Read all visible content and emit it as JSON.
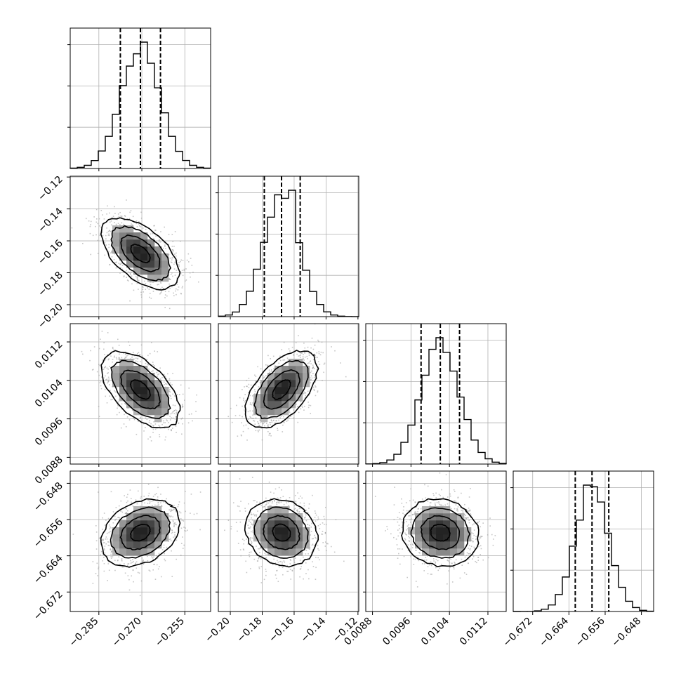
{
  "chart_data": {
    "type": "corner",
    "grid": true,
    "parameters": [
      {
        "index": 0,
        "range": [
          -0.295,
          -0.246
        ],
        "ticks": [
          {
            "value": -0.285,
            "label": "−0.285"
          },
          {
            "value": -0.27,
            "label": "−0.270"
          },
          {
            "value": -0.255,
            "label": "−0.255"
          }
        ],
        "quantiles": [
          -0.2775,
          -0.2705,
          -0.2635
        ],
        "median": -0.2705,
        "sigma": 0.0068
      },
      {
        "index": 1,
        "range": [
          -0.2075,
          -0.1195
        ],
        "ticks": [
          {
            "value": -0.2,
            "label": "−0.20"
          },
          {
            "value": -0.18,
            "label": "−0.18"
          },
          {
            "value": -0.16,
            "label": "−0.16"
          },
          {
            "value": -0.14,
            "label": "−0.14"
          },
          {
            "value": -0.12,
            "label": "−0.12"
          }
        ],
        "quantiles": [
          -0.1787,
          -0.1679,
          -0.1562
        ],
        "median": -0.1679,
        "sigma": 0.0112
      },
      {
        "index": 2,
        "range": [
          0.00866,
          0.01158
        ],
        "ticks": [
          {
            "value": 0.0088,
            "label": "0.0088"
          },
          {
            "value": 0.0096,
            "label": "0.0096"
          },
          {
            "value": 0.0104,
            "label": "0.0104"
          },
          {
            "value": 0.0112,
            "label": "0.0112"
          }
        ],
        "quantiles": [
          0.00981,
          0.01021,
          0.01061
        ],
        "median": 0.01021,
        "sigma": 0.0004
      },
      {
        "index": 3,
        "range": [
          -0.6763,
          -0.6453
        ],
        "ticks": [
          {
            "value": -0.672,
            "label": "−0.672"
          },
          {
            "value": -0.664,
            "label": "−0.664"
          },
          {
            "value": -0.656,
            "label": "−0.656"
          },
          {
            "value": -0.648,
            "label": "−0.648"
          }
        ],
        "quantiles": [
          -0.6626,
          -0.6589,
          -0.6552
        ],
        "median": -0.6589,
        "sigma": 0.0037
      }
    ],
    "correlations": [
      {
        "row": 1,
        "col": 0,
        "rho": -0.55
      },
      {
        "row": 2,
        "col": 0,
        "rho": -0.55
      },
      {
        "row": 2,
        "col": 1,
        "rho": 0.55
      },
      {
        "row": 3,
        "col": 0,
        "rho": 0.3
      },
      {
        "row": 3,
        "col": 1,
        "rho": -0.15
      },
      {
        "row": 3,
        "col": 2,
        "rho": -0.1
      }
    ],
    "contour_levels": [
      0.5,
      1.0,
      1.5,
      2.0
    ],
    "colors": {
      "line": "#000000",
      "grid": "#b0b0b0",
      "scatter": "#a0a0a0",
      "background": "#ffffff"
    }
  }
}
